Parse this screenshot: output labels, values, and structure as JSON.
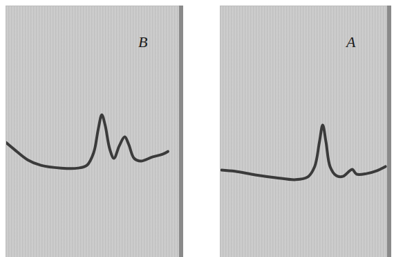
{
  "chart_data": [
    {
      "type": "line",
      "annotations": [
        {
          "text": "B"
        }
      ],
      "color": "#2b2b2b",
      "x": [
        0,
        4.7,
        12.5,
        20.2,
        31.9,
        41.6,
        46.7,
        50.6,
        53.3,
        55.3,
        57.2,
        59.9,
        62.3,
        65.4,
        68.5,
        70.8,
        73.9,
        77.8,
        84.4,
        90.3,
        93.4
      ],
      "values": [
        45.7,
        43.0,
        38.8,
        36.6,
        35.5,
        35.5,
        36.6,
        41.6,
        51.2,
        56.7,
        52.6,
        43.0,
        39.4,
        44.4,
        47.9,
        44.9,
        39.4,
        38.3,
        39.9,
        41.0,
        42.1
      ],
      "xlim": [
        0,
        100
      ],
      "ylim": [
        0,
        100
      ],
      "tick_labels": false
    },
    {
      "type": "line",
      "annotations": [
        {
          "text": "A"
        }
      ],
      "color": "#2b2b2b",
      "x": [
        0.8,
        8.9,
        21.0,
        33.1,
        45.2,
        52.4,
        56.5,
        59.3,
        61.3,
        63.3,
        65.7,
        69.4,
        73.4,
        77.4,
        79.0,
        81.5,
        87.5,
        93.5,
        98.8
      ],
      "values": [
        34.7,
        34.2,
        32.8,
        31.7,
        30.9,
        32.0,
        36.1,
        45.7,
        52.6,
        45.7,
        36.1,
        32.5,
        32.2,
        34.4,
        35.0,
        33.1,
        33.3,
        34.4,
        36.1
      ],
      "xlim": [
        0,
        100
      ],
      "ylim": [
        0,
        100
      ],
      "tick_labels": false
    }
  ]
}
